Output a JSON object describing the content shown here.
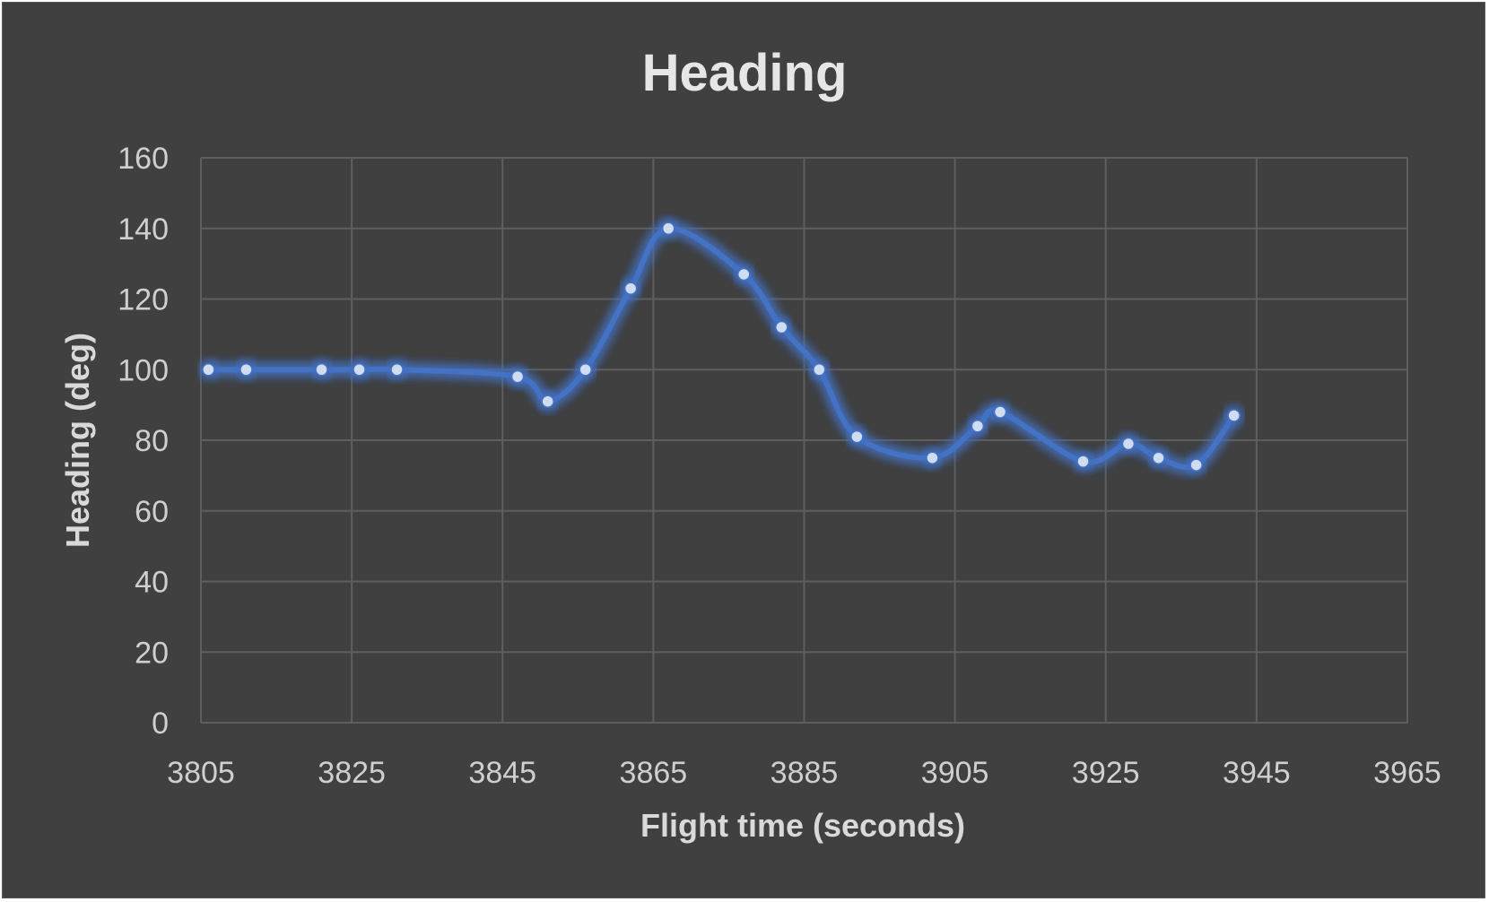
{
  "chart_data": {
    "type": "scatter",
    "title": "Heading",
    "xlabel": "Flight time (seconds)",
    "ylabel": "Heading (deg)",
    "xlim": [
      3805,
      3965
    ],
    "ylim": [
      0,
      160
    ],
    "x_ticks": [
      3805,
      3825,
      3845,
      3865,
      3885,
      3905,
      3925,
      3945,
      3965
    ],
    "y_ticks": [
      0,
      20,
      40,
      60,
      80,
      100,
      120,
      140,
      160
    ],
    "grid": true,
    "legend": "none",
    "line_style": "smoothed line with markers",
    "colors": {
      "series": "#4472c4",
      "marker": "#d0dcf0",
      "background": "#404040",
      "grid": "#5e5e5e"
    },
    "series": [
      {
        "x": [
          3806,
          3811,
          3821,
          3826,
          3831,
          3847,
          3851,
          3856,
          3862,
          3867,
          3877,
          3882,
          3887,
          3892,
          3902,
          3908,
          3911,
          3922,
          3928,
          3932,
          3937,
          3942
        ],
        "y": [
          100,
          100,
          100,
          100,
          100,
          98,
          91,
          100,
          123,
          140,
          127,
          112,
          100,
          81,
          75,
          84,
          88,
          74,
          79,
          75,
          73,
          87
        ]
      }
    ]
  }
}
